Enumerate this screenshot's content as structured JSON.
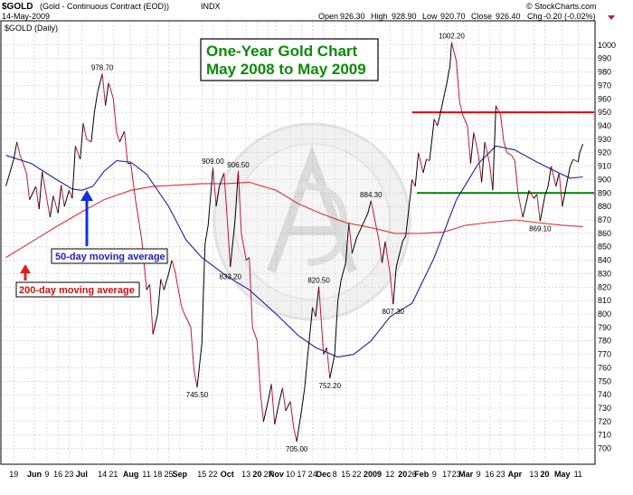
{
  "header": {
    "symbol": "$GOLD",
    "description": "(Gold - Continuous Contract (EOD))",
    "exchange": "INDX",
    "date": "14-May-2009",
    "open_label": "Open",
    "open": "926.30",
    "high_label": "High",
    "high": "928.90",
    "low_label": "Low",
    "low": "920.70",
    "close_label": "Close",
    "close": "926.40",
    "chg_label": "Chg",
    "chg": "-0.20 (-0.02%)",
    "watermark": "© StockCharts.com",
    "legend": "$GOLD (Daily)"
  },
  "title_box": {
    "line1": "One-Year Gold Chart",
    "line2": "May 2008 to May 2009"
  },
  "callouts": {
    "ma50": "50-day moving average",
    "ma200": "200-day moving average"
  },
  "colors": {
    "price_up": "#000000",
    "price_down": "#c0183c",
    "ma50": "#2020a0",
    "ma200": "#e03030",
    "resistance": "#e00000",
    "support": "#008000",
    "title_text": "#0a8a0a",
    "grid": "#c8c8c8"
  },
  "chart_data": {
    "type": "line",
    "title": "One-Year Gold Chart May 2008 to May 2009",
    "ylim": [
      695,
      1010
    ],
    "y_scale": "linear",
    "y_axis_side": "right",
    "grid": true,
    "yticks": [
      700,
      710,
      720,
      730,
      740,
      750,
      760,
      770,
      780,
      790,
      800,
      810,
      820,
      830,
      840,
      850,
      860,
      870,
      880,
      890,
      900,
      910,
      920,
      930,
      940,
      950,
      960,
      970,
      980,
      990,
      1000
    ],
    "xticks": [
      "19",
      "Jun",
      "9",
      "16",
      "23",
      "Jul",
      "14",
      "21",
      "Aug",
      "11",
      "18",
      "25",
      "Sep",
      "15",
      "22",
      "Oct",
      "13",
      "20",
      "27",
      "Nov",
      "10",
      "17",
      "24",
      "Dec",
      "8",
      "15",
      "22",
      "2009",
      "12",
      "20",
      "26",
      "Feb",
      "9",
      "17",
      "23",
      "Mar",
      "9",
      "16",
      "23",
      "Apr",
      "13",
      "20",
      "May",
      "11"
    ],
    "x_dates": [
      "2008-05-19",
      "2008-06-01",
      "2008-06-09",
      "2008-06-16",
      "2008-06-23",
      "2008-07-01",
      "2008-07-14",
      "2008-07-21",
      "2008-08-01",
      "2008-08-11",
      "2008-08-18",
      "2008-08-25",
      "2008-09-01",
      "2008-09-15",
      "2008-09-22",
      "2008-10-01",
      "2008-10-13",
      "2008-10-20",
      "2008-10-27",
      "2008-11-01",
      "2008-11-10",
      "2008-11-17",
      "2008-11-24",
      "2008-12-01",
      "2008-12-08",
      "2008-12-15",
      "2008-12-22",
      "2009-01-01",
      "2009-01-12",
      "2009-01-20",
      "2009-01-26",
      "2009-02-01",
      "2009-02-09",
      "2009-02-17",
      "2009-02-23",
      "2009-03-01",
      "2009-03-09",
      "2009-03-16",
      "2009-03-23",
      "2009-04-01",
      "2009-04-13",
      "2009-04-20",
      "2009-05-01",
      "2009-05-11"
    ],
    "series": [
      {
        "kind": "price",
        "points": [
          [
            "2008-05-14",
            895
          ],
          [
            "2008-05-19",
            915
          ],
          [
            "2008-05-21",
            928
          ],
          [
            "2008-05-23",
            918
          ],
          [
            "2008-05-27",
            905
          ],
          [
            "2008-05-29",
            885
          ],
          [
            "2008-06-02",
            895
          ],
          [
            "2008-06-04",
            878
          ],
          [
            "2008-06-06",
            906
          ],
          [
            "2008-06-09",
            885
          ],
          [
            "2008-06-11",
            872
          ],
          [
            "2008-06-13",
            888
          ],
          [
            "2008-06-16",
            875
          ],
          [
            "2008-06-18",
            896
          ],
          [
            "2008-06-20",
            880
          ],
          [
            "2008-06-23",
            892
          ],
          [
            "2008-06-25",
            886
          ],
          [
            "2008-06-27",
            925
          ],
          [
            "2008-06-30",
            915
          ],
          [
            "2008-07-02",
            942
          ],
          [
            "2008-07-04",
            930
          ],
          [
            "2008-07-07",
            928
          ],
          [
            "2008-07-09",
            950
          ],
          [
            "2008-07-11",
            965
          ],
          [
            "2008-07-14",
            978.7
          ],
          [
            "2008-07-16",
            955
          ],
          [
            "2008-07-18",
            972
          ],
          [
            "2008-07-21",
            960
          ],
          [
            "2008-07-23",
            935
          ],
          [
            "2008-07-25",
            928
          ],
          [
            "2008-07-28",
            936
          ],
          [
            "2008-07-30",
            912
          ],
          [
            "2008-08-01",
            912
          ],
          [
            "2008-08-04",
            885
          ],
          [
            "2008-08-06",
            870
          ],
          [
            "2008-08-08",
            855
          ],
          [
            "2008-08-11",
            818
          ],
          [
            "2008-08-13",
            822
          ],
          [
            "2008-08-15",
            785
          ],
          [
            "2008-08-18",
            800
          ],
          [
            "2008-08-20",
            826
          ],
          [
            "2008-08-22",
            818
          ],
          [
            "2008-08-25",
            830
          ],
          [
            "2008-08-27",
            840
          ],
          [
            "2008-08-29",
            832
          ],
          [
            "2008-09-02",
            806
          ],
          [
            "2008-09-04",
            800
          ],
          [
            "2008-09-08",
            790
          ],
          [
            "2008-09-10",
            758
          ],
          [
            "2008-09-12",
            745.5
          ],
          [
            "2008-09-15",
            778
          ],
          [
            "2008-09-17",
            852
          ],
          [
            "2008-09-19",
            866
          ],
          [
            "2008-09-22",
            909
          ],
          [
            "2008-09-24",
            880
          ],
          [
            "2008-09-26",
            895
          ],
          [
            "2008-09-29",
            905
          ],
          [
            "2008-10-01",
            872
          ],
          [
            "2008-10-03",
            835
          ],
          [
            "2008-10-06",
            870
          ],
          [
            "2008-10-08",
            906.5
          ],
          [
            "2008-10-10",
            860
          ],
          [
            "2008-10-13",
            840
          ],
          [
            "2008-10-15",
            842
          ],
          [
            "2008-10-17",
            790
          ],
          [
            "2008-10-20",
            780
          ],
          [
            "2008-10-22",
            742
          ],
          [
            "2008-10-24",
            720
          ],
          [
            "2008-10-27",
            736
          ],
          [
            "2008-10-29",
            748
          ],
          [
            "2008-10-31",
            718
          ],
          [
            "2008-11-03",
            735
          ],
          [
            "2008-11-05",
            745
          ],
          [
            "2008-11-07",
            728
          ],
          [
            "2008-11-10",
            735
          ],
          [
            "2008-11-12",
            716
          ],
          [
            "2008-11-14",
            705
          ],
          [
            "2008-11-17",
            728
          ],
          [
            "2008-11-19",
            745
          ],
          [
            "2008-11-21",
            770
          ],
          [
            "2008-11-24",
            805
          ],
          [
            "2008-11-26",
            798
          ],
          [
            "2008-11-28",
            820.5
          ],
          [
            "2008-12-01",
            770
          ],
          [
            "2008-12-03",
            775
          ],
          [
            "2008-12-05",
            752.2
          ],
          [
            "2008-12-08",
            770
          ],
          [
            "2008-12-10",
            810
          ],
          [
            "2008-12-12",
            825
          ],
          [
            "2008-12-15",
            838
          ],
          [
            "2008-12-17",
            868
          ],
          [
            "2008-12-19",
            845
          ],
          [
            "2008-12-22",
            857
          ],
          [
            "2008-12-24",
            862
          ],
          [
            "2008-12-29",
            875
          ],
          [
            "2008-12-31",
            884.3
          ],
          [
            "2009-01-05",
            855
          ],
          [
            "2009-01-07",
            838
          ],
          [
            "2009-01-09",
            854
          ],
          [
            "2009-01-12",
            830
          ],
          [
            "2009-01-14",
            807.3
          ],
          [
            "2009-01-16",
            835
          ],
          [
            "2009-01-20",
            854
          ],
          [
            "2009-01-22",
            858
          ],
          [
            "2009-01-26",
            900
          ],
          [
            "2009-01-28",
            895
          ],
          [
            "2009-01-30",
            920
          ],
          [
            "2009-02-02",
            905
          ],
          [
            "2009-02-04",
            915
          ],
          [
            "2009-02-06",
            914
          ],
          [
            "2009-02-09",
            945
          ],
          [
            "2009-02-11",
            940
          ],
          [
            "2009-02-13",
            950
          ],
          [
            "2009-02-17",
            972
          ],
          [
            "2009-02-19",
            985
          ],
          [
            "2009-02-20",
            1002.2
          ],
          [
            "2009-02-23",
            988
          ],
          [
            "2009-02-25",
            958
          ],
          [
            "2009-02-27",
            948
          ],
          [
            "2009-03-02",
            940
          ],
          [
            "2009-03-04",
            912
          ],
          [
            "2009-03-06",
            935
          ],
          [
            "2009-03-09",
            918
          ],
          [
            "2009-03-11",
            898
          ],
          [
            "2009-03-13",
            928
          ],
          [
            "2009-03-16",
            912
          ],
          [
            "2009-03-18",
            892
          ],
          [
            "2009-03-20",
            955
          ],
          [
            "2009-03-23",
            948
          ],
          [
            "2009-03-25",
            928
          ],
          [
            "2009-03-27",
            920
          ],
          [
            "2009-03-30",
            918
          ],
          [
            "2009-04-01",
            914
          ],
          [
            "2009-04-03",
            890
          ],
          [
            "2009-04-06",
            872
          ],
          [
            "2009-04-08",
            882
          ],
          [
            "2009-04-10",
            892
          ],
          [
            "2009-04-13",
            886
          ],
          [
            "2009-04-15",
            889
          ],
          [
            "2009-04-17",
            869.1
          ],
          [
            "2009-04-20",
            888
          ],
          [
            "2009-04-22",
            895
          ],
          [
            "2009-04-24",
            910
          ],
          [
            "2009-04-27",
            895
          ],
          [
            "2009-04-29",
            905
          ],
          [
            "2009-05-01",
            880
          ],
          [
            "2009-05-04",
            898
          ],
          [
            "2009-05-06",
            910
          ],
          [
            "2009-05-08",
            915
          ],
          [
            "2009-05-11",
            913
          ],
          [
            "2009-05-12",
            920
          ],
          [
            "2009-05-14",
            926.4
          ]
        ]
      },
      {
        "name": "50-day moving average",
        "kind": "ma50",
        "points": [
          [
            "2008-05-14",
            918
          ],
          [
            "2008-05-30",
            912
          ],
          [
            "2008-06-15",
            900
          ],
          [
            "2008-06-25",
            893
          ],
          [
            "2008-07-01",
            892
          ],
          [
            "2008-07-08",
            895
          ],
          [
            "2008-07-15",
            906
          ],
          [
            "2008-07-23",
            914
          ],
          [
            "2008-08-01",
            913
          ],
          [
            "2008-08-11",
            904
          ],
          [
            "2008-08-25",
            880
          ],
          [
            "2008-09-05",
            855
          ],
          [
            "2008-09-15",
            842
          ],
          [
            "2008-10-01",
            828
          ],
          [
            "2008-10-15",
            818
          ],
          [
            "2008-11-01",
            800
          ],
          [
            "2008-11-15",
            784
          ],
          [
            "2008-11-26",
            775
          ],
          [
            "2008-12-10",
            768
          ],
          [
            "2008-12-20",
            770
          ],
          [
            "2008-12-31",
            780
          ],
          [
            "2009-01-12",
            798
          ],
          [
            "2009-01-26",
            808
          ],
          [
            "2009-02-09",
            842
          ],
          [
            "2009-02-23",
            885
          ],
          [
            "2009-03-09",
            912
          ],
          [
            "2009-03-20",
            925
          ],
          [
            "2009-04-01",
            922
          ],
          [
            "2009-04-15",
            913
          ],
          [
            "2009-04-27",
            906
          ],
          [
            "2009-05-06",
            901
          ],
          [
            "2009-05-14",
            902
          ]
        ]
      },
      {
        "name": "200-day moving average",
        "kind": "ma200",
        "points": [
          [
            "2008-05-14",
            842
          ],
          [
            "2008-06-01",
            855
          ],
          [
            "2008-06-15",
            865
          ],
          [
            "2008-07-01",
            876
          ],
          [
            "2008-07-15",
            885
          ],
          [
            "2008-08-01",
            892
          ],
          [
            "2008-08-15",
            895
          ],
          [
            "2008-09-01",
            896
          ],
          [
            "2008-09-15",
            897
          ],
          [
            "2008-10-01",
            897
          ],
          [
            "2008-10-15",
            898
          ],
          [
            "2008-11-01",
            892
          ],
          [
            "2008-11-15",
            882
          ],
          [
            "2008-12-01",
            874
          ],
          [
            "2008-12-15",
            868
          ],
          [
            "2009-01-01",
            864
          ],
          [
            "2009-01-15",
            860
          ],
          [
            "2009-02-01",
            860
          ],
          [
            "2009-02-15",
            861
          ],
          [
            "2009-03-01",
            866
          ],
          [
            "2009-03-15",
            868
          ],
          [
            "2009-04-01",
            870
          ],
          [
            "2009-04-15",
            868
          ],
          [
            "2009-05-01",
            866
          ],
          [
            "2009-05-14",
            865
          ]
        ]
      }
    ],
    "hlines": [
      {
        "kind": "resistance",
        "y": 950,
        "from": "2009-01-26",
        "to": "2009-05-22"
      },
      {
        "kind": "support",
        "y": 890,
        "from": "2009-01-29",
        "to": "2009-05-22"
      }
    ],
    "annotations": [
      {
        "text": "978.70",
        "date": "2008-07-14",
        "y": 978.7,
        "pos": "above"
      },
      {
        "text": "909.00",
        "date": "2008-09-22",
        "y": 909,
        "pos": "above"
      },
      {
        "text": "906.50",
        "date": "2008-10-08",
        "y": 906.5,
        "pos": "above"
      },
      {
        "text": "745.50",
        "date": "2008-09-12",
        "y": 745.5,
        "pos": "below"
      },
      {
        "text": "833.20",
        "date": "2008-10-03",
        "y": 833.2,
        "pos": "below"
      },
      {
        "text": "705.00",
        "date": "2008-11-14",
        "y": 705,
        "pos": "below"
      },
      {
        "text": "820.50",
        "date": "2008-11-28",
        "y": 820.5,
        "pos": "above"
      },
      {
        "text": "752.20",
        "date": "2008-12-05",
        "y": 752.2,
        "pos": "below"
      },
      {
        "text": "884.30",
        "date": "2008-12-31",
        "y": 884.3,
        "pos": "above"
      },
      {
        "text": "807.30",
        "date": "2009-01-14",
        "y": 807.3,
        "pos": "below"
      },
      {
        "text": "1002.20",
        "date": "2009-02-20",
        "y": 1002.2,
        "pos": "above"
      },
      {
        "text": "869.10",
        "date": "2009-04-17",
        "y": 869.1,
        "pos": "below"
      }
    ]
  }
}
